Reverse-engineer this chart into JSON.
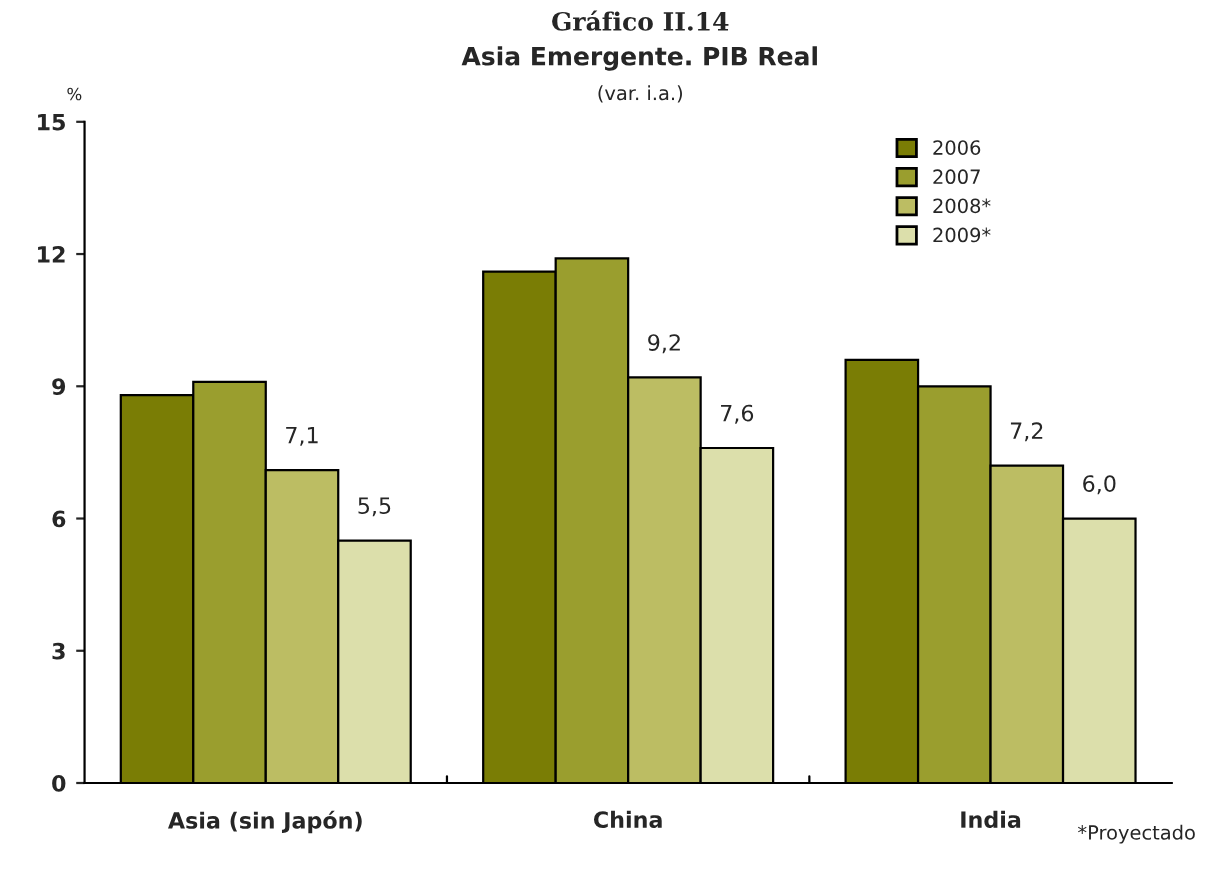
{
  "chart_data": {
    "type": "bar",
    "title": "Gráfico II.14",
    "subtitle": "Asia Emergente. PIB Real",
    "ylabel": "%",
    "annotations": [
      "(var. i.a.)",
      "*Proyectado"
    ],
    "categories": [
      "Asia (sin Japón)",
      "China",
      "India"
    ],
    "series": [
      {
        "name": "2006",
        "color": "#7a7d05",
        "values": [
          8.8,
          11.6,
          9.6
        ]
      },
      {
        "name": "2007",
        "color": "#9a9e2e",
        "values": [
          9.1,
          11.9,
          9.0
        ]
      },
      {
        "name": "2008*",
        "color": "#bcbd63",
        "values": [
          7.1,
          9.2,
          7.2
        ],
        "value_labels": [
          "7,1",
          "9,2",
          "7,2"
        ]
      },
      {
        "name": "2009*",
        "color": "#dcdfab",
        "values": [
          5.5,
          7.6,
          6.0
        ],
        "value_labels": [
          "5,5",
          "7,6",
          "6,0"
        ]
      }
    ],
    "ylim": [
      0,
      15
    ],
    "yticks": [
      0,
      3,
      6,
      9,
      12,
      15
    ],
    "grid": false,
    "legend": "top right"
  }
}
